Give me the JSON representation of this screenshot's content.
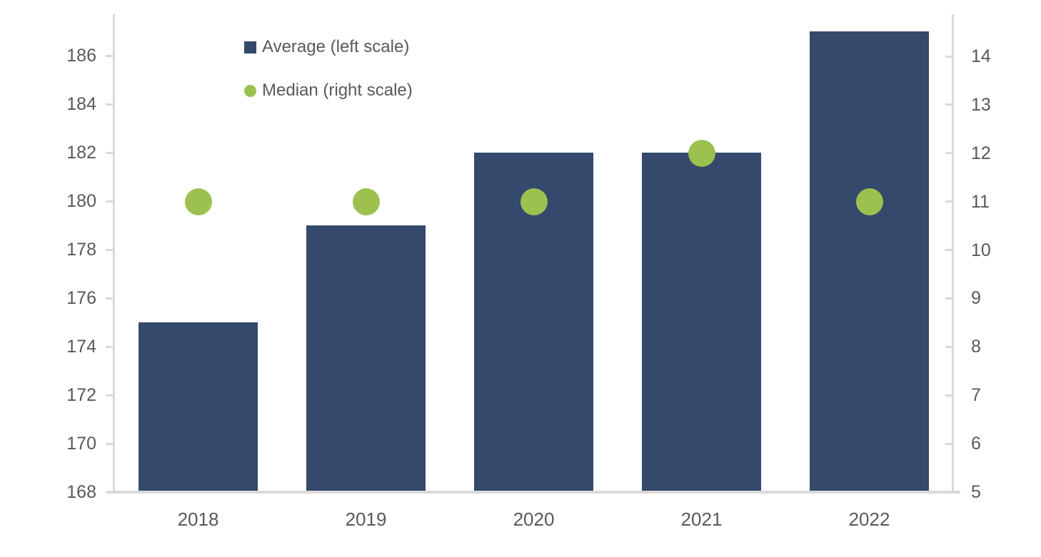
{
  "chart_data": {
    "type": "bar",
    "title": "",
    "categories": [
      "2018",
      "2019",
      "2020",
      "2021",
      "2022"
    ],
    "series": [
      {
        "name": "Average (left scale)",
        "type": "bar",
        "axis": "left",
        "values": [
          175,
          179,
          182,
          182,
          187
        ],
        "color": "#34496B"
      },
      {
        "name": "Median (right scale)",
        "type": "scatter",
        "axis": "right",
        "values": [
          11,
          11,
          11,
          12,
          11
        ],
        "color": "#9CC14E"
      }
    ],
    "left_axis": {
      "min": 168,
      "max": 186,
      "step": 2,
      "ticks": [
        168,
        170,
        172,
        174,
        176,
        178,
        180,
        182,
        184,
        186
      ]
    },
    "right_axis": {
      "min": 5,
      "max": 14,
      "step": 1,
      "ticks": [
        5,
        6,
        7,
        8,
        9,
        10,
        11,
        12,
        13,
        14
      ]
    },
    "legend_position": "top-left-inside",
    "grid": false
  },
  "colors": {
    "bar": "#34496B",
    "marker": "#9CC14E",
    "axis_line": "#D9D9D9",
    "label_text": "#595959",
    "background": "#FFFFFF"
  }
}
